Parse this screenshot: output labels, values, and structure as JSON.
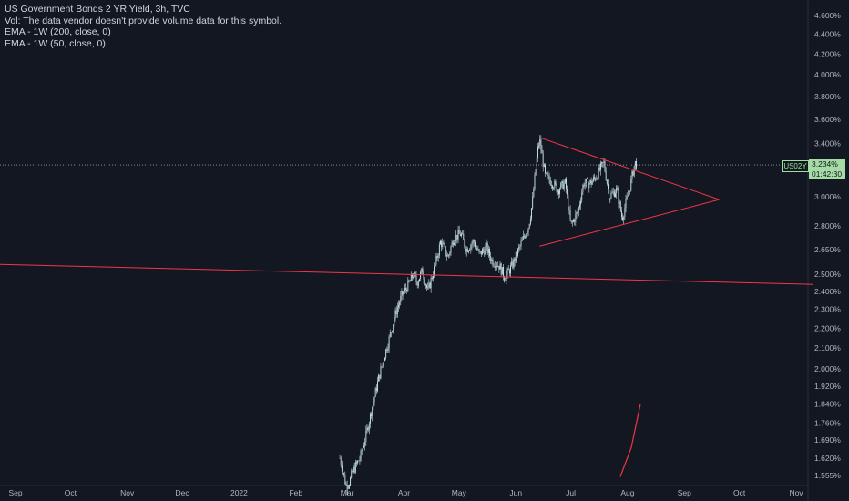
{
  "legend": {
    "title": "US Government Bonds 2 YR Yield, 3h, TVC",
    "vol_note": "Vol: The data vendor doesn't provide volume data for this symbol.",
    "ema200": "EMA - 1W (200, close, 0)",
    "ema50": "EMA - 1W (50, close, 0)"
  },
  "price_badge": {
    "symbol": "US02Y",
    "value": "3.234%",
    "countdown": "01:42:30"
  },
  "colors": {
    "background": "#131722",
    "candle": "#c9e3e6",
    "trendline": "#f23645",
    "ema": "#f23645",
    "badge": "#a5dba5",
    "axis_text": "#b2b5be"
  },
  "chart_data": {
    "type": "candlestick",
    "symbol": "US02Y",
    "interval": "3h",
    "last_value": 3.234,
    "y_scale": "log",
    "ylim": [
      1.52,
      4.75
    ],
    "y_ticks": [
      "4.600%",
      "4.400%",
      "4.200%",
      "4.000%",
      "3.800%",
      "3.600%",
      "3.400%",
      "3.200%",
      "3.000%",
      "2.800%",
      "2.650%",
      "2.500%",
      "2.400%",
      "2.300%",
      "2.200%",
      "2.100%",
      "2.000%",
      "1.920%",
      "1.840%",
      "1.760%",
      "1.690%",
      "1.620%",
      "1.555%"
    ],
    "x_ticks": [
      "Sep",
      "Oct",
      "Nov",
      "Dec",
      "2022",
      "Feb",
      "Mar",
      "Apr",
      "May",
      "Jun",
      "Jul",
      "Aug",
      "Sep",
      "Oct",
      "Nov"
    ],
    "price_path": [
      [
        "2022-02-25",
        1.62
      ],
      [
        "2022-03-01",
        1.5
      ],
      [
        "2022-03-04",
        1.57
      ],
      [
        "2022-03-08",
        1.62
      ],
      [
        "2022-03-11",
        1.7
      ],
      [
        "2022-03-15",
        1.84
      ],
      [
        "2022-03-18",
        1.95
      ],
      [
        "2022-03-21",
        2.05
      ],
      [
        "2022-03-24",
        2.15
      ],
      [
        "2022-03-28",
        2.3
      ],
      [
        "2022-03-31",
        2.38
      ],
      [
        "2022-04-04",
        2.45
      ],
      [
        "2022-04-06",
        2.5
      ],
      [
        "2022-04-08",
        2.45
      ],
      [
        "2022-04-11",
        2.52
      ],
      [
        "2022-04-14",
        2.4
      ],
      [
        "2022-04-18",
        2.55
      ],
      [
        "2022-04-21",
        2.7
      ],
      [
        "2022-04-25",
        2.6
      ],
      [
        "2022-04-28",
        2.72
      ],
      [
        "2022-05-02",
        2.75
      ],
      [
        "2022-05-05",
        2.65
      ],
      [
        "2022-05-09",
        2.7
      ],
      [
        "2022-05-12",
        2.62
      ],
      [
        "2022-05-16",
        2.66
      ],
      [
        "2022-05-19",
        2.58
      ],
      [
        "2022-05-23",
        2.55
      ],
      [
        "2022-05-26",
        2.48
      ],
      [
        "2022-05-30",
        2.55
      ],
      [
        "2022-06-03",
        2.66
      ],
      [
        "2022-06-08",
        2.8
      ],
      [
        "2022-06-10",
        2.95
      ],
      [
        "2022-06-13",
        3.35
      ],
      [
        "2022-06-14",
        3.43
      ],
      [
        "2022-06-17",
        3.15
      ],
      [
        "2022-06-21",
        3.1
      ],
      [
        "2022-06-24",
        3.05
      ],
      [
        "2022-06-28",
        3.1
      ],
      [
        "2022-07-01",
        2.8
      ],
      [
        "2022-07-05",
        2.9
      ],
      [
        "2022-07-08",
        3.1
      ],
      [
        "2022-07-12",
        3.1
      ],
      [
        "2022-07-15",
        3.15
      ],
      [
        "2022-07-19",
        3.25
      ],
      [
        "2022-07-22",
        3.0
      ],
      [
        "2022-07-26",
        3.05
      ],
      [
        "2022-07-29",
        2.85
      ],
      [
        "2022-08-02",
        3.05
      ],
      [
        "2022-08-05",
        3.25
      ],
      [
        "2022-08-06",
        3.234
      ]
    ],
    "trendlines": [
      {
        "from": [
          "2021-08-17",
          2.56
        ],
        "to": [
          "2022-11-10",
          2.44
        ]
      },
      {
        "from": [
          "2022-06-14",
          3.45
        ],
        "to": [
          "2022-09-20",
          2.98
        ]
      },
      {
        "from": [
          "2022-06-14",
          2.67
        ],
        "to": [
          "2022-09-20",
          2.98
        ]
      }
    ],
    "ema_segment": [
      [
        "2022-07-28",
        1.55
      ],
      [
        "2022-08-03",
        1.66
      ],
      [
        "2022-08-08",
        1.84
      ]
    ]
  }
}
